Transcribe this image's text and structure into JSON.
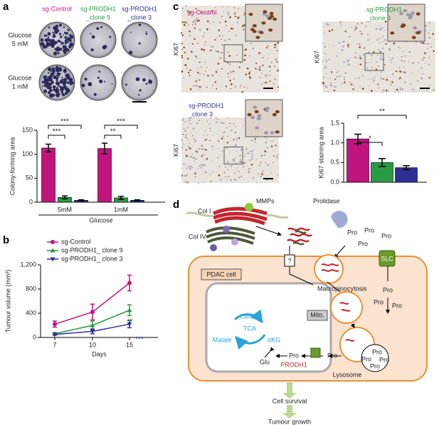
{
  "panel_labels": [
    "a",
    "b",
    "c",
    "d"
  ],
  "panel_a": {
    "columns": [
      [
        "sg-Control"
      ],
      [
        "sg-PRODH1",
        "_clone 9"
      ],
      [
        "sg-PRODH1",
        "_clone 3"
      ]
    ],
    "rows": [
      [
        "Glucose",
        "5 mM"
      ],
      [
        "Glucose",
        "1 mM"
      ]
    ]
  },
  "panel_c": {
    "images": [
      [
        "sg-Control"
      ],
      [
        "sg-PRODH1",
        "_clone 9"
      ],
      [
        "sg-PRODH1",
        "_clone 3"
      ]
    ],
    "stain": [
      "Ki67",
      "Ki67",
      "Ki67"
    ]
  },
  "chart_data": [
    {
      "type": "bar",
      "ylabel": "Colony-forming area",
      "xlabel": "Glucose",
      "categories": [
        "5mM",
        "1mM"
      ],
      "series": [
        {
          "color": "#c0157f",
          "values": [
            113,
            112
          ],
          "errors": [
            8,
            11
          ]
        },
        {
          "color": "#2a9a44",
          "values": [
            10,
            9
          ],
          "errors": [
            3,
            3
          ]
        },
        {
          "color": "#2e3192",
          "values": [
            4,
            4
          ],
          "errors": [
            1,
            1
          ]
        }
      ],
      "ylim": [
        0,
        150
      ],
      "yticks": [
        0,
        50,
        100,
        150
      ],
      "annotations": [
        "***",
        "***",
        "**",
        "***"
      ]
    },
    {
      "type": "line",
      "ylabel": "Tumour volume (mm³)",
      "xlabel": "Days",
      "categories": [
        7,
        10,
        15
      ],
      "series": [
        {
          "name": "sg-Control",
          "color": "#c0157f",
          "marker": "circle",
          "values": [
            220,
            420,
            900
          ],
          "errors": [
            50,
            130,
            130
          ]
        },
        {
          "name": "sg-PRODH1_ clone 9",
          "color": "#2a9a44",
          "marker": "triangle-up",
          "values": [
            60,
            200,
            450
          ],
          "errors": [
            20,
            70,
            90
          ]
        },
        {
          "name": "sg-PRODH1_ clone 3",
          "color": "#2e3192",
          "marker": "triangle-down",
          "values": [
            50,
            100,
            220
          ],
          "errors": [
            15,
            40,
            60
          ]
        }
      ],
      "ylim": [
        0,
        1200
      ],
      "yticks": [
        0,
        400,
        800,
        {
          "value": 1200,
          "label": "1,200"
        }
      ],
      "legend": "top-left",
      "annotations": [
        "**",
        "***"
      ]
    },
    {
      "type": "bar",
      "ylabel": "Ki67 staining area",
      "categories": [
        null,
        null,
        null
      ],
      "values": [
        1.1,
        0.5,
        0.37
      ],
      "errors": [
        0.12,
        0.1,
        0.05
      ],
      "colors": [
        "#c0157f",
        "#2a9a44",
        "#2e3192"
      ],
      "ylim": [
        0,
        1.5
      ],
      "yticks": [
        {
          "value": 0,
          "label": "0.0"
        },
        0.5,
        {
          "value": 1,
          "label": "1.0"
        },
        1.5
      ],
      "annotations": [
        "*",
        "**"
      ]
    }
  ],
  "diagram": {
    "col1": "Col I",
    "mmps": "MMPs",
    "col4": "Col IV",
    "prolidase": "Prolidase",
    "unknown": "?",
    "slc": "SLC",
    "cell": "PDAC cell",
    "macropinocytosis": "Macropinocytosis",
    "mito": "Mito.",
    "citrate": "Citrate",
    "tca": "TCA",
    "malate": "Malate",
    "akg": "αKG",
    "glu": "Glu",
    "prodh1": "PRODH1",
    "lysosome": "Lysosome",
    "pro": [
      "Pro",
      "Pro",
      "Pro",
      "Pro",
      "Pro",
      "Pro",
      "Pro",
      "Pro",
      "Pro",
      "Pro",
      "Pro",
      "Pro",
      "Pro"
    ],
    "survival": "Cell survival",
    "growth": "Tumour growth"
  }
}
